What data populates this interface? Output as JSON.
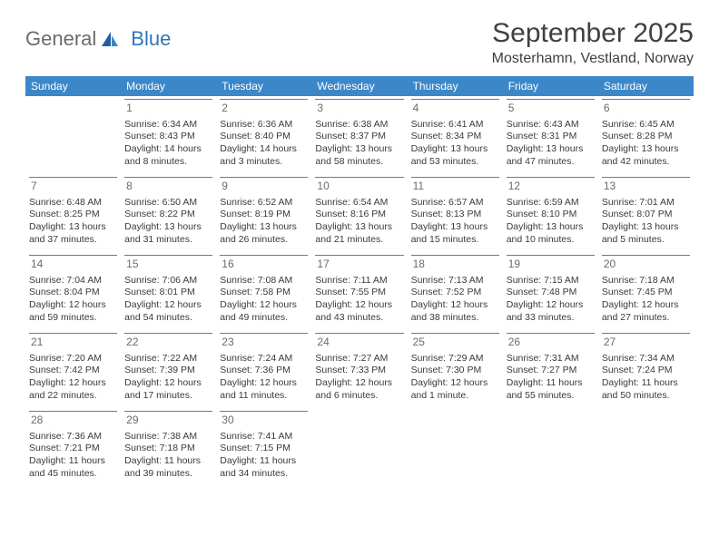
{
  "logo": {
    "general": "General",
    "blue": "Blue"
  },
  "title": "September 2025",
  "location": "Mosterhamn, Vestland, Norway",
  "colors": {
    "header_bg": "#3b87c8",
    "header_text": "#ffffff",
    "rule": "#3b87c8"
  },
  "weekdays": [
    "Sunday",
    "Monday",
    "Tuesday",
    "Wednesday",
    "Thursday",
    "Friday",
    "Saturday"
  ],
  "labels": {
    "sunrise": "Sunrise:",
    "sunset": "Sunset:",
    "daylight": "Daylight:"
  },
  "weeks": [
    [
      null,
      {
        "n": "1",
        "sr": "6:34 AM",
        "ss": "8:43 PM",
        "dl": "14 hours and 8 minutes."
      },
      {
        "n": "2",
        "sr": "6:36 AM",
        "ss": "8:40 PM",
        "dl": "14 hours and 3 minutes."
      },
      {
        "n": "3",
        "sr": "6:38 AM",
        "ss": "8:37 PM",
        "dl": "13 hours and 58 minutes."
      },
      {
        "n": "4",
        "sr": "6:41 AM",
        "ss": "8:34 PM",
        "dl": "13 hours and 53 minutes."
      },
      {
        "n": "5",
        "sr": "6:43 AM",
        "ss": "8:31 PM",
        "dl": "13 hours and 47 minutes."
      },
      {
        "n": "6",
        "sr": "6:45 AM",
        "ss": "8:28 PM",
        "dl": "13 hours and 42 minutes."
      }
    ],
    [
      {
        "n": "7",
        "sr": "6:48 AM",
        "ss": "8:25 PM",
        "dl": "13 hours and 37 minutes."
      },
      {
        "n": "8",
        "sr": "6:50 AM",
        "ss": "8:22 PM",
        "dl": "13 hours and 31 minutes."
      },
      {
        "n": "9",
        "sr": "6:52 AM",
        "ss": "8:19 PM",
        "dl": "13 hours and 26 minutes."
      },
      {
        "n": "10",
        "sr": "6:54 AM",
        "ss": "8:16 PM",
        "dl": "13 hours and 21 minutes."
      },
      {
        "n": "11",
        "sr": "6:57 AM",
        "ss": "8:13 PM",
        "dl": "13 hours and 15 minutes."
      },
      {
        "n": "12",
        "sr": "6:59 AM",
        "ss": "8:10 PM",
        "dl": "13 hours and 10 minutes."
      },
      {
        "n": "13",
        "sr": "7:01 AM",
        "ss": "8:07 PM",
        "dl": "13 hours and 5 minutes."
      }
    ],
    [
      {
        "n": "14",
        "sr": "7:04 AM",
        "ss": "8:04 PM",
        "dl": "12 hours and 59 minutes."
      },
      {
        "n": "15",
        "sr": "7:06 AM",
        "ss": "8:01 PM",
        "dl": "12 hours and 54 minutes."
      },
      {
        "n": "16",
        "sr": "7:08 AM",
        "ss": "7:58 PM",
        "dl": "12 hours and 49 minutes."
      },
      {
        "n": "17",
        "sr": "7:11 AM",
        "ss": "7:55 PM",
        "dl": "12 hours and 43 minutes."
      },
      {
        "n": "18",
        "sr": "7:13 AM",
        "ss": "7:52 PM",
        "dl": "12 hours and 38 minutes."
      },
      {
        "n": "19",
        "sr": "7:15 AM",
        "ss": "7:48 PM",
        "dl": "12 hours and 33 minutes."
      },
      {
        "n": "20",
        "sr": "7:18 AM",
        "ss": "7:45 PM",
        "dl": "12 hours and 27 minutes."
      }
    ],
    [
      {
        "n": "21",
        "sr": "7:20 AM",
        "ss": "7:42 PM",
        "dl": "12 hours and 22 minutes."
      },
      {
        "n": "22",
        "sr": "7:22 AM",
        "ss": "7:39 PM",
        "dl": "12 hours and 17 minutes."
      },
      {
        "n": "23",
        "sr": "7:24 AM",
        "ss": "7:36 PM",
        "dl": "12 hours and 11 minutes."
      },
      {
        "n": "24",
        "sr": "7:27 AM",
        "ss": "7:33 PM",
        "dl": "12 hours and 6 minutes."
      },
      {
        "n": "25",
        "sr": "7:29 AM",
        "ss": "7:30 PM",
        "dl": "12 hours and 1 minute."
      },
      {
        "n": "26",
        "sr": "7:31 AM",
        "ss": "7:27 PM",
        "dl": "11 hours and 55 minutes."
      },
      {
        "n": "27",
        "sr": "7:34 AM",
        "ss": "7:24 PM",
        "dl": "11 hours and 50 minutes."
      }
    ],
    [
      {
        "n": "28",
        "sr": "7:36 AM",
        "ss": "7:21 PM",
        "dl": "11 hours and 45 minutes."
      },
      {
        "n": "29",
        "sr": "7:38 AM",
        "ss": "7:18 PM",
        "dl": "11 hours and 39 minutes."
      },
      {
        "n": "30",
        "sr": "7:41 AM",
        "ss": "7:15 PM",
        "dl": "11 hours and 34 minutes."
      },
      null,
      null,
      null,
      null
    ]
  ]
}
